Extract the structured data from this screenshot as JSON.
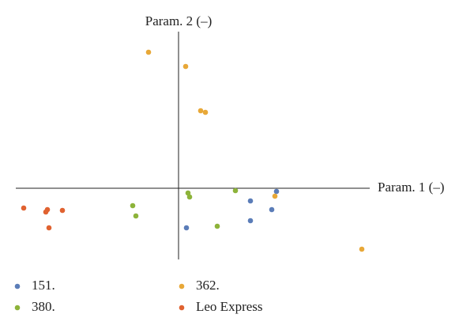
{
  "chart_data": {
    "type": "scatter",
    "xlabel": "Param. 1 (–)",
    "ylabel": "Param. 2 (–)",
    "xlim": [
      -20.6,
      24.2
    ],
    "ylim": [
      -9,
      19.8
    ],
    "series": [
      {
        "name": "151.",
        "color": "#5b7db8",
        "x": [
          1.0,
          9.1,
          9.1,
          11.8,
          12.4
        ],
        "y": [
          -5.0,
          -1.6,
          -4.1,
          -2.7,
          -0.4
        ]
      },
      {
        "name": "362.",
        "color": "#e8a838",
        "x": [
          -3.8,
          0.9,
          2.8,
          3.4,
          12.2,
          23.2
        ],
        "y": [
          17.2,
          15.4,
          9.8,
          9.6,
          -1.0,
          -7.7
        ]
      },
      {
        "name": "380.",
        "color": "#8db33a",
        "x": [
          -5.8,
          -5.4,
          1.2,
          1.4,
          4.9,
          7.2
        ],
        "y": [
          -2.2,
          -3.5,
          -0.6,
          -1.1,
          -4.8,
          -0.3
        ]
      },
      {
        "name": "Leo Express",
        "color": "#e06230",
        "x": [
          -19.6,
          -16.8,
          -16.6,
          -14.7,
          -16.4
        ],
        "y": [
          -2.5,
          -3.0,
          -2.7,
          -2.8,
          -5.0
        ]
      }
    ]
  }
}
